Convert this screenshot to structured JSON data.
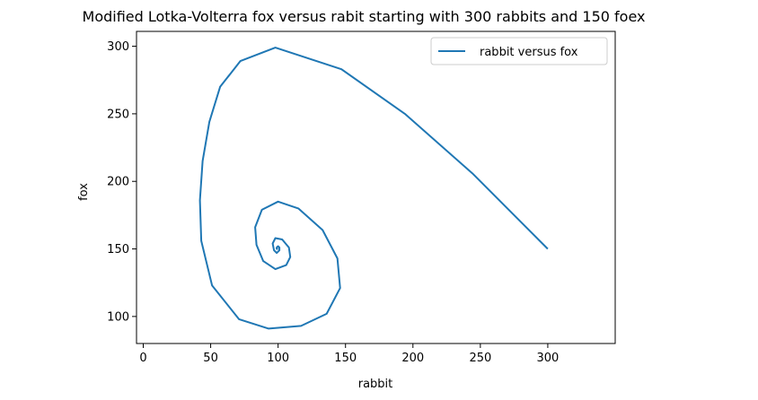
{
  "chart_data": {
    "type": "line",
    "title": "Modified Lotka-Volterra fox versus rabit starting with 300 rabbits and 150 foex",
    "xlabel": "rabbit",
    "ylabel": "fox",
    "xlim": [
      -5,
      350
    ],
    "ylim": [
      80,
      311
    ],
    "xticks": [
      0,
      50,
      100,
      150,
      200,
      250,
      300
    ],
    "yticks": [
      100,
      150,
      200,
      250,
      300
    ],
    "grid": false,
    "legend_placement": "top-right",
    "line_color": "#1f77b4",
    "series": [
      {
        "name": "rabbit versus fox",
        "x": [
          300,
          244,
          194,
          147,
          98,
          72,
          57,
          49,
          44,
          42,
          43,
          51,
          71,
          93,
          117,
          136,
          146,
          144,
          133,
          115,
          100,
          88,
          83,
          84,
          89,
          98,
          106,
          109,
          108,
          103,
          98,
          96,
          97,
          99,
          101,
          101,
          100,
          99,
          99,
          100
        ],
        "y": [
          150,
          206,
          250,
          283,
          299,
          289,
          270,
          244,
          215,
          186,
          156,
          123,
          98,
          91,
          93,
          102,
          121,
          143,
          164,
          180,
          185,
          179,
          166,
          153,
          141,
          135,
          138,
          144,
          151,
          157,
          158,
          154,
          149,
          147,
          149,
          151,
          152,
          151,
          150,
          150
        ]
      }
    ]
  }
}
